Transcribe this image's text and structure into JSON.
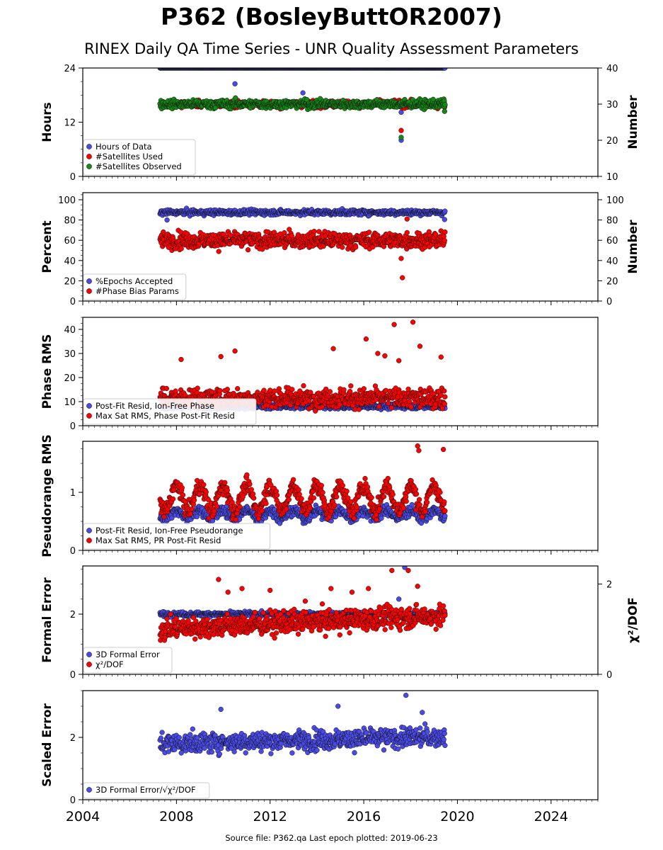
{
  "header": {
    "title": "P362 (BosleyButtOR2007)",
    "subtitle": "RINEX Daily QA Time Series - UNR Quality Assessment Parameters"
  },
  "footer": {
    "source_note": "Source file: P362.qa Last epoch plotted: 2019-06-23"
  },
  "colors": {
    "blue": "#4a4ae8",
    "red": "#ff0000",
    "green": "#138a13",
    "dark_line": "#0a0a2a"
  },
  "chart_data": [
    {
      "type": "scatter",
      "panel": "hours",
      "xlim": [
        2004,
        2026
      ],
      "x_ticks": [
        "2004",
        "2008",
        "2012",
        "2016",
        "2020",
        "2024"
      ],
      "ylabel": "Hours",
      "ylim": [
        0,
        24
      ],
      "y_ticks": [
        "0",
        "12",
        "24"
      ],
      "y2label": "Number",
      "y2lim": [
        10,
        40
      ],
      "y2_ticks": [
        "10",
        "20",
        "30",
        "40"
      ],
      "legend_position": "lower-left",
      "series": [
        {
          "name": "Hours of Data",
          "axis": "left",
          "color": "blue",
          "x_range": [
            2007.3,
            2019.47
          ],
          "base": 24.0,
          "spread": 0.0,
          "outliers": [
            [
              2010.5,
              20.5
            ],
            [
              2013.4,
              18.5
            ],
            [
              2017.6,
              14.2
            ],
            [
              2017.6,
              8.0
            ]
          ]
        },
        {
          "name": "#Satellites Used",
          "axis": "right",
          "color": "red",
          "x_range": [
            2007.3,
            2019.47
          ],
          "base": 30.0,
          "spread": 0.6,
          "outliers": [
            [
              2009.7,
              30.0
            ],
            [
              2017.6,
              22.7
            ]
          ]
        },
        {
          "name": "#Satellites Observed",
          "axis": "right",
          "color": "green",
          "x_range": [
            2007.3,
            2019.47
          ],
          "base": 30.0,
          "spread": 0.8,
          "outliers": [
            [
              2017.6,
              20.8
            ],
            [
              2019.45,
              28.0
            ]
          ]
        }
      ]
    },
    {
      "type": "scatter",
      "panel": "percent",
      "xlim": [
        2004,
        2026
      ],
      "ylabel": "Percent",
      "ylim": [
        0,
        107
      ],
      "y_ticks": [
        "0",
        "20",
        "40",
        "60",
        "80",
        "100"
      ],
      "y2label": "Number",
      "y2_ticks": [
        "0",
        "20",
        "40",
        "60",
        "80",
        "100"
      ],
      "legend_position": "lower-left",
      "series": [
        {
          "name": "%Epochs Accepted",
          "axis": "left",
          "color": "blue",
          "x_range": [
            2007.3,
            2019.47
          ],
          "base": 87.5,
          "spread": 1.8,
          "outliers": [
            [
              2007.6,
              80.0
            ],
            [
              2019.45,
              80.5
            ]
          ]
        },
        {
          "name": "#Phase Bias Params",
          "axis": "right",
          "color": "red",
          "x_range": [
            2007.3,
            2019.47
          ],
          "base": 60.0,
          "spread": 5.5,
          "outliers": [
            [
              2017.6,
              42.0
            ],
            [
              2017.65,
              23.0
            ],
            [
              2017.85,
              81.0
            ]
          ]
        }
      ]
    },
    {
      "type": "scatter",
      "panel": "phase-rms",
      "xlim": [
        2004,
        2026
      ],
      "ylabel": "Phase RMS",
      "ylim": [
        0,
        45
      ],
      "y_ticks": [
        "0",
        "10",
        "20",
        "30",
        "40"
      ],
      "legend_position": "lower-left",
      "series": [
        {
          "name": "Post-Fit Resid, Ion-Free Phase",
          "axis": "left",
          "color": "blue",
          "x_range": [
            2007.3,
            2019.47
          ],
          "base": 8.0,
          "spread": 0.7,
          "outliers": []
        },
        {
          "name": "Max Sat RMS, Phase Post-Fit Resid",
          "axis": "left",
          "color": "red",
          "x_range": [
            2007.3,
            2019.47
          ],
          "base": 11.5,
          "spread": 2.8,
          "outliers": [
            [
              2008.2,
              27.5
            ],
            [
              2009.9,
              28.7
            ],
            [
              2010.5,
              31.0
            ],
            [
              2014.7,
              32.0
            ],
            [
              2016.1,
              36.0
            ],
            [
              2016.6,
              30.0
            ],
            [
              2016.9,
              29.0
            ],
            [
              2017.3,
              42.0
            ],
            [
              2017.5,
              27.0
            ],
            [
              2018.1,
              43.0
            ],
            [
              2018.4,
              33.0
            ],
            [
              2019.3,
              28.5
            ]
          ]
        }
      ]
    },
    {
      "type": "scatter",
      "panel": "pseudorange-rms",
      "xlim": [
        2004,
        2026
      ],
      "ylabel": "Pseudorange RMS",
      "ylim": [
        0,
        1.88
      ],
      "y_ticks": [
        "0",
        "1"
      ],
      "legend_position": "lower-left",
      "series": [
        {
          "name": "Post-Fit Resid, Ion-Free Pseudorange",
          "axis": "left",
          "color": "blue",
          "x_range": [
            2007.3,
            2019.47
          ],
          "base": 0.62,
          "spread": 0.06,
          "seasonal": 0.07,
          "outliers": []
        },
        {
          "name": "Max Sat RMS, PR Post-Fit Resid",
          "axis": "left",
          "color": "red",
          "x_range": [
            2007.3,
            2019.47
          ],
          "base": 0.9,
          "spread": 0.1,
          "seasonal": 0.22,
          "outliers": [
            [
              2018.3,
              1.8
            ],
            [
              2018.35,
              1.72
            ],
            [
              2019.4,
              1.74
            ]
          ]
        }
      ]
    },
    {
      "type": "scatter",
      "panel": "formal-error",
      "xlim": [
        2004,
        2026
      ],
      "ylabel": "Formal Error",
      "ylim": [
        0,
        3.6
      ],
      "y_ticks": [
        "0",
        "2"
      ],
      "y2label": "χ²/DOF",
      "y2lim": [
        0,
        2.4
      ],
      "y2_ticks": [
        "0",
        "2"
      ],
      "legend_position": "lower-left",
      "series": [
        {
          "name": "3D Formal Error",
          "axis": "left",
          "color": "blue",
          "x_range": [
            2007.3,
            2019.47
          ],
          "base": 2.0,
          "spread": 0.05,
          "outliers": [
            [
              2017.75,
              3.55
            ],
            [
              2017.5,
              2.5
            ]
          ]
        },
        {
          "name": "χ²/DOF",
          "axis": "right",
          "color": "red",
          "x_range": [
            2007.3,
            2019.47
          ],
          "base": 1.0,
          "spread": 0.17,
          "trend": 0.025,
          "outliers": [
            [
              2009.8,
              2.1
            ],
            [
              2010.2,
              1.82
            ],
            [
              2010.8,
              1.9
            ],
            [
              2012.0,
              1.86
            ],
            [
              2013.5,
              1.62
            ],
            [
              2014.6,
              1.9
            ],
            [
              2015.5,
              1.82
            ],
            [
              2016.2,
              1.9
            ],
            [
              2017.2,
              2.3
            ],
            [
              2017.9,
              2.3
            ],
            [
              2018.3,
              1.95
            ]
          ]
        }
      ]
    },
    {
      "type": "scatter",
      "panel": "scaled-error",
      "xlim": [
        2004,
        2026
      ],
      "ylabel": "Scaled Error",
      "ylim": [
        0,
        3.5
      ],
      "y_ticks": [
        "0",
        "2"
      ],
      "legend_position": "lower-left",
      "series": [
        {
          "name": "3D Formal Error/√χ²/DOF",
          "axis": "left",
          "color": "blue",
          "x_range": [
            2007.3,
            2019.47
          ],
          "base": 1.8,
          "spread": 0.22,
          "trend": 0.018,
          "outliers": [
            [
              2009.9,
              2.9
            ],
            [
              2014.9,
              3.0
            ],
            [
              2017.8,
              3.35
            ],
            [
              2018.5,
              2.8
            ]
          ]
        }
      ]
    }
  ]
}
